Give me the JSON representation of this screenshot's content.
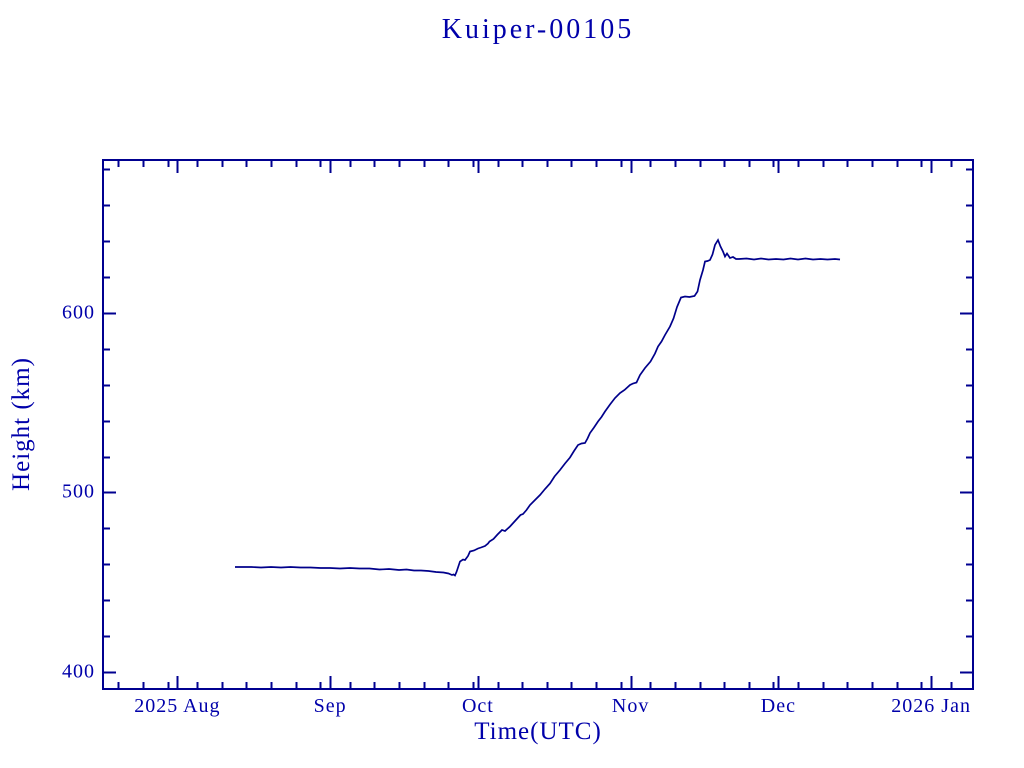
{
  "page": {
    "background": "#ffffff"
  },
  "chart_data": {
    "type": "line",
    "title": "Kuiper-00105",
    "xlabel": "Time(UTC)",
    "ylabel": "Height (km)",
    "legend": "none",
    "grid": false,
    "colors": {
      "text": "#0000aa",
      "axis": "#000090",
      "line": "#00008b",
      "background": "#ffffff"
    },
    "x_axis": {
      "unit": "days since 2025-08-01 UTC",
      "range_days": [
        -15.1,
        161.5
      ],
      "major_ticks": [
        {
          "day": 0,
          "label": "2025 Aug"
        },
        {
          "day": 31,
          "label": "Sep"
        },
        {
          "day": 61,
          "label": "Oct"
        },
        {
          "day": 92,
          "label": "Nov"
        },
        {
          "day": 122,
          "label": "Dec"
        },
        {
          "day": 153,
          "label": "2026 Jan"
        }
      ],
      "minor_ticks_days": [
        -12,
        -7,
        -2,
        4,
        9,
        14,
        19,
        24,
        29,
        35,
        40,
        45,
        50,
        55,
        60,
        65,
        70,
        75,
        80,
        85,
        90,
        96,
        101,
        106,
        111,
        116,
        121,
        126,
        131,
        136,
        141,
        146,
        151,
        157
      ]
    },
    "y_axis": {
      "unit": "km",
      "range_km": [
        390.5,
        685.2
      ],
      "major_ticks": [
        {
          "value": 400,
          "label": "400"
        },
        {
          "value": 500,
          "label": "500"
        },
        {
          "value": 600,
          "label": "600"
        }
      ],
      "minor_ticks_km": [
        420,
        440,
        460,
        480,
        520,
        540,
        560,
        580,
        620,
        640,
        660,
        680
      ]
    },
    "series": [
      {
        "name": "height-km",
        "points_day_km": [
          [
            11.7,
            458.6
          ],
          [
            13.5,
            458.4
          ],
          [
            15,
            458.6
          ],
          [
            17,
            458.3
          ],
          [
            19,
            458.5
          ],
          [
            21,
            458.2
          ],
          [
            23,
            458.4
          ],
          [
            25,
            458.1
          ],
          [
            27,
            458.2
          ],
          [
            29,
            457.9
          ],
          [
            31,
            458.0
          ],
          [
            33,
            457.7
          ],
          [
            35,
            457.8
          ],
          [
            37,
            457.5
          ],
          [
            39,
            457.6
          ],
          [
            41,
            457.2
          ],
          [
            43,
            457.3
          ],
          [
            45,
            456.9
          ],
          [
            46.5,
            457.0
          ],
          [
            48,
            456.5
          ],
          [
            49.5,
            456.6
          ],
          [
            51,
            456.1
          ],
          [
            52.5,
            455.8
          ],
          [
            54,
            455.4
          ],
          [
            55,
            454.9
          ],
          [
            55.7,
            453.9
          ],
          [
            56.0,
            454.4
          ],
          [
            56.4,
            453.7
          ],
          [
            56.7,
            455.8
          ],
          [
            57.0,
            458.2
          ],
          [
            57.4,
            461.4
          ],
          [
            58.0,
            462.6
          ],
          [
            58.4,
            462.3
          ],
          [
            59.0,
            464.5
          ],
          [
            59.4,
            467.0
          ],
          [
            60.2,
            467.6
          ],
          [
            61.0,
            468.9
          ],
          [
            61.6,
            469.3
          ],
          [
            62.4,
            470.3
          ],
          [
            63.0,
            471.6
          ],
          [
            63.4,
            472.6
          ],
          [
            64.2,
            474.0
          ],
          [
            65.0,
            476.5
          ],
          [
            65.9,
            479.0
          ],
          [
            66.5,
            478.6
          ],
          [
            67.5,
            481.0
          ],
          [
            68.5,
            484.0
          ],
          [
            69.6,
            487.5
          ],
          [
            70.2,
            488.0
          ],
          [
            70.9,
            490.2
          ],
          [
            71.6,
            493.0
          ],
          [
            72.6,
            495.8
          ],
          [
            73.6,
            498.6
          ],
          [
            74.6,
            501.8
          ],
          [
            75.6,
            505.1
          ],
          [
            76.6,
            508.8
          ],
          [
            77.7,
            512.5
          ],
          [
            78.7,
            516.0
          ],
          [
            79.7,
            519.5
          ],
          [
            80.5,
            523.0
          ],
          [
            81.3,
            526.5
          ],
          [
            82.0,
            527.2
          ],
          [
            82.7,
            527.6
          ],
          [
            83.2,
            530.0
          ],
          [
            83.8,
            533.0
          ],
          [
            84.6,
            536.2
          ],
          [
            85.4,
            539.4
          ],
          [
            86.1,
            542.0
          ],
          [
            86.8,
            545.0
          ],
          [
            87.8,
            549.0
          ],
          [
            88.8,
            552.5
          ],
          [
            89.8,
            555.3
          ],
          [
            90.8,
            557.1
          ],
          [
            91.9,
            559.9
          ],
          [
            92.5,
            560.8
          ],
          [
            93.2,
            561.2
          ],
          [
            93.9,
            565.5
          ],
          [
            94.9,
            569.2
          ],
          [
            96.0,
            572.9
          ],
          [
            97.0,
            577.5
          ],
          [
            97.6,
            581.2
          ],
          [
            98.3,
            584.0
          ],
          [
            99.0,
            587.7
          ],
          [
            100.0,
            592.4
          ],
          [
            100.7,
            597.0
          ],
          [
            101.4,
            603.3
          ],
          [
            102.2,
            608.5
          ],
          [
            103.0,
            609.2
          ],
          [
            104.0,
            608.8
          ],
          [
            105.0,
            609.3
          ],
          [
            105.6,
            612.0
          ],
          [
            106.1,
            618.4
          ],
          [
            106.7,
            624.0
          ],
          [
            107.1,
            628.6
          ],
          [
            107.6,
            629.0
          ],
          [
            108.1,
            629.6
          ],
          [
            108.6,
            632.5
          ],
          [
            109.1,
            637.9
          ],
          [
            109.7,
            640.7
          ],
          [
            110.2,
            637.0
          ],
          [
            110.8,
            634.2
          ],
          [
            111.2,
            631.5
          ],
          [
            111.6,
            633.0
          ],
          [
            112.2,
            630.5
          ],
          [
            112.8,
            631.2
          ],
          [
            113.4,
            630.0
          ],
          [
            114.0,
            630.0
          ],
          [
            115.5,
            630.3
          ],
          [
            117,
            629.9
          ],
          [
            118.5,
            630.2
          ],
          [
            120,
            629.9
          ],
          [
            121.5,
            630.1
          ],
          [
            123,
            629.8
          ],
          [
            124.5,
            630.2
          ],
          [
            126,
            629.9
          ],
          [
            127.5,
            630.3
          ],
          [
            129,
            629.9
          ],
          [
            130.5,
            630.1
          ],
          [
            132,
            629.8
          ],
          [
            133.5,
            630.0
          ],
          [
            134.5,
            629.9
          ]
        ]
      }
    ]
  }
}
